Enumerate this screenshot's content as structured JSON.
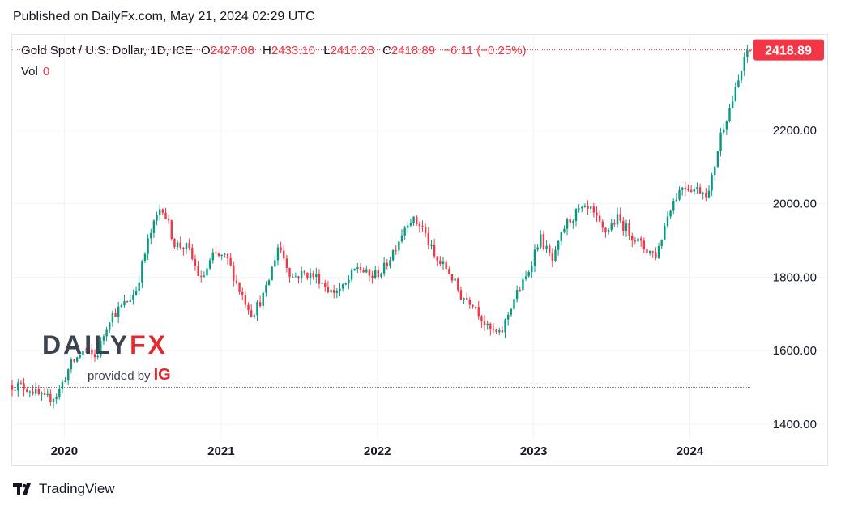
{
  "published": "Published on DailyFx.com, May 21, 2024 02:29 UTC",
  "legend": {
    "symbol": "Gold Spot / U.S. Dollar, 1D, ICE",
    "o_label": "O",
    "open": "2427.08",
    "h_label": "H",
    "high": "2433.10",
    "l_label": "L",
    "low": "2416.28",
    "c_label": "C",
    "close": "2418.89",
    "change": "−6.11 (−0.25%)",
    "vol_label": "Vol",
    "vol_value": "0"
  },
  "watermark": {
    "brand_left": "DAILY",
    "brand_right": "FX",
    "provided_by": "provided by",
    "ig": "IG"
  },
  "footer": {
    "brand": "TradingView"
  },
  "colors": {
    "up": "#089981",
    "down": "#f23645",
    "price_label_bg": "#f23645",
    "grid": "#f0f3fa",
    "axis_text": "#131722"
  },
  "chart_data": {
    "type": "candlestick",
    "title": "Gold Spot / U.S. Dollar, 1D, ICE",
    "x_axis": {
      "type": "date",
      "tick_labels": [
        "2020",
        "2021",
        "2022",
        "2023",
        "2024"
      ],
      "range": [
        "2019-09-01",
        "2024-05-21"
      ]
    },
    "y_axis": {
      "tick_labels": [
        "1400.00",
        "1600.00",
        "1800.00",
        "2000.00",
        "2200.00"
      ],
      "range": [
        1360,
        2460
      ],
      "position": "right"
    },
    "last_price_label": "2418.89",
    "grid": true,
    "reference_line": 1500,
    "series": [
      {
        "x": [
          "2019-09",
          "2019-10",
          "2019-11",
          "2019-12",
          "2020-01",
          "2020-02",
          "2020-03",
          "2020-04",
          "2020-05",
          "2020-06",
          "2020-07",
          "2020-08",
          "2020-09",
          "2020-10",
          "2020-11",
          "2020-12",
          "2021-01",
          "2021-02",
          "2021-03",
          "2021-04",
          "2021-05",
          "2021-06",
          "2021-07",
          "2021-08",
          "2021-09",
          "2021-10",
          "2021-11",
          "2021-12",
          "2022-01",
          "2022-02",
          "2022-03",
          "2022-04",
          "2022-05",
          "2022-06",
          "2022-07",
          "2022-08",
          "2022-09",
          "2022-10",
          "2022-11",
          "2022-12",
          "2023-01",
          "2023-02",
          "2023-03",
          "2023-04",
          "2023-05",
          "2023-06",
          "2023-07",
          "2023-08",
          "2023-09",
          "2023-10",
          "2023-11",
          "2023-12",
          "2024-01",
          "2024-02",
          "2024-03",
          "2024-04",
          "2024-05"
        ],
        "y": [
          1505,
          1495,
          1465,
          1480,
          1560,
          1600,
          1580,
          1690,
          1720,
          1760,
          1900,
          2000,
          1890,
          1880,
          1790,
          1860,
          1850,
          1760,
          1700,
          1760,
          1890,
          1800,
          1810,
          1800,
          1760,
          1770,
          1830,
          1800,
          1820,
          1890,
          1960,
          1940,
          1850,
          1820,
          1750,
          1730,
          1660,
          1640,
          1740,
          1800,
          1910,
          1840,
          1940,
          1980,
          1980,
          1920,
          1960,
          1920,
          1880,
          1860,
          1990,
          2050,
          2040,
          2030,
          2200,
          2300,
          2418.89
        ]
      }
    ]
  }
}
